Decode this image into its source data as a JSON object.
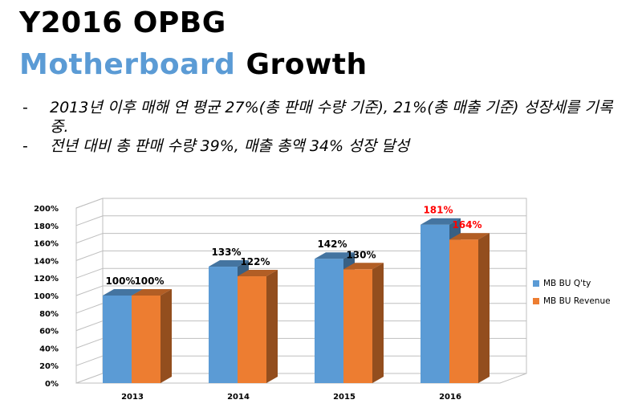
{
  "slide": {
    "title_line1": "Y2016 OPBG",
    "title_line2_accent": "Motherboard",
    "title_line2_rest": "Growth",
    "bullets": [
      "2013년 이후 매해 연 평균 27%(총 판매 수량 기준), 21%(총 매출 기준) 성장세를 기록 중.",
      "전년 대비 총 판매 수량 39%, 매출 총액 34% 성장 달성"
    ],
    "bullet_marker": "-"
  },
  "colors": {
    "accent": "#5b9bd5",
    "series_qty": "#5b9bd5",
    "series_rev": "#ed7d31",
    "highlight_label": "#ff0000"
  },
  "chart_data": {
    "type": "bar",
    "categories": [
      "2013",
      "2014",
      "2015",
      "2016"
    ],
    "series": [
      {
        "name": "MB BU Q'ty",
        "values": [
          100,
          133,
          142,
          181
        ],
        "labels": [
          "100%",
          "133%",
          "142%",
          "181%"
        ]
      },
      {
        "name": "MB BU Revenue",
        "values": [
          100,
          122,
          130,
          164
        ],
        "labels": [
          "100%",
          "122%",
          "130%",
          "164%"
        ]
      }
    ],
    "y_ticks": [
      "0%",
      "20%",
      "40%",
      "60%",
      "80%",
      "100%",
      "120%",
      "140%",
      "160%",
      "180%",
      "200%"
    ],
    "ylim": [
      0,
      200
    ],
    "grid": true,
    "legend_position": "right",
    "highlighted_category": "2016",
    "three_d": true
  }
}
